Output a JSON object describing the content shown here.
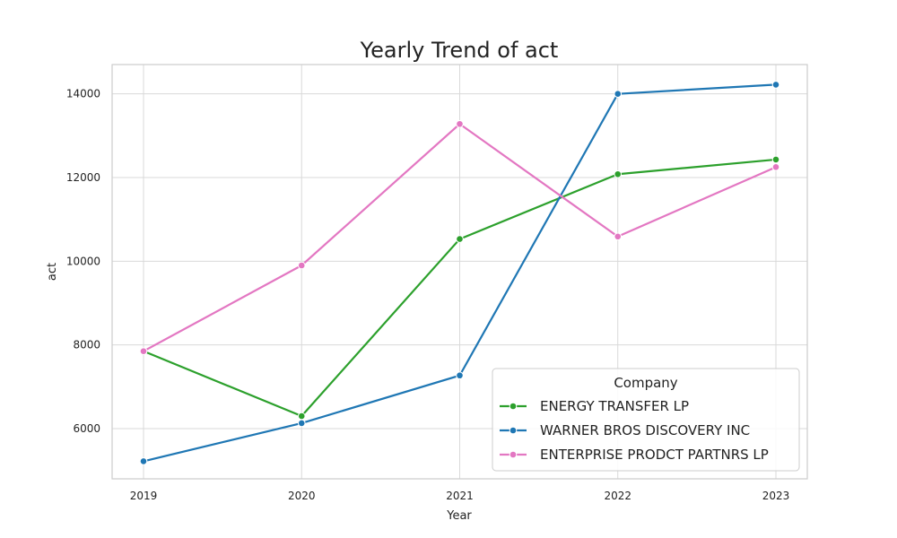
{
  "chart_data": {
    "type": "line",
    "title": "Yearly Trend of act",
    "xlabel": "Year",
    "ylabel": "act",
    "x": [
      "2019",
      "2020",
      "2021",
      "2022",
      "2023"
    ],
    "ylim": [
      4800,
      14700
    ],
    "yticks": [
      "6000",
      "8000",
      "10000",
      "12000",
      "14000"
    ],
    "grid": true,
    "legend": {
      "title": "Company",
      "placement": "lower-right"
    },
    "series": [
      {
        "name": "ENERGY TRANSFER LP",
        "color": "#2ca02c",
        "values": [
          7850,
          6300,
          10530,
          12080,
          12430
        ]
      },
      {
        "name": "WARNER BROS DISCOVERY INC",
        "color": "#1f77b4",
        "values": [
          5220,
          6130,
          7270,
          14000,
          14220
        ]
      },
      {
        "name": "ENTERPRISE PRODCT PARTNRS LP",
        "color": "#e377c2",
        "values": [
          7850,
          9900,
          13280,
          10590,
          12250
        ]
      }
    ]
  }
}
